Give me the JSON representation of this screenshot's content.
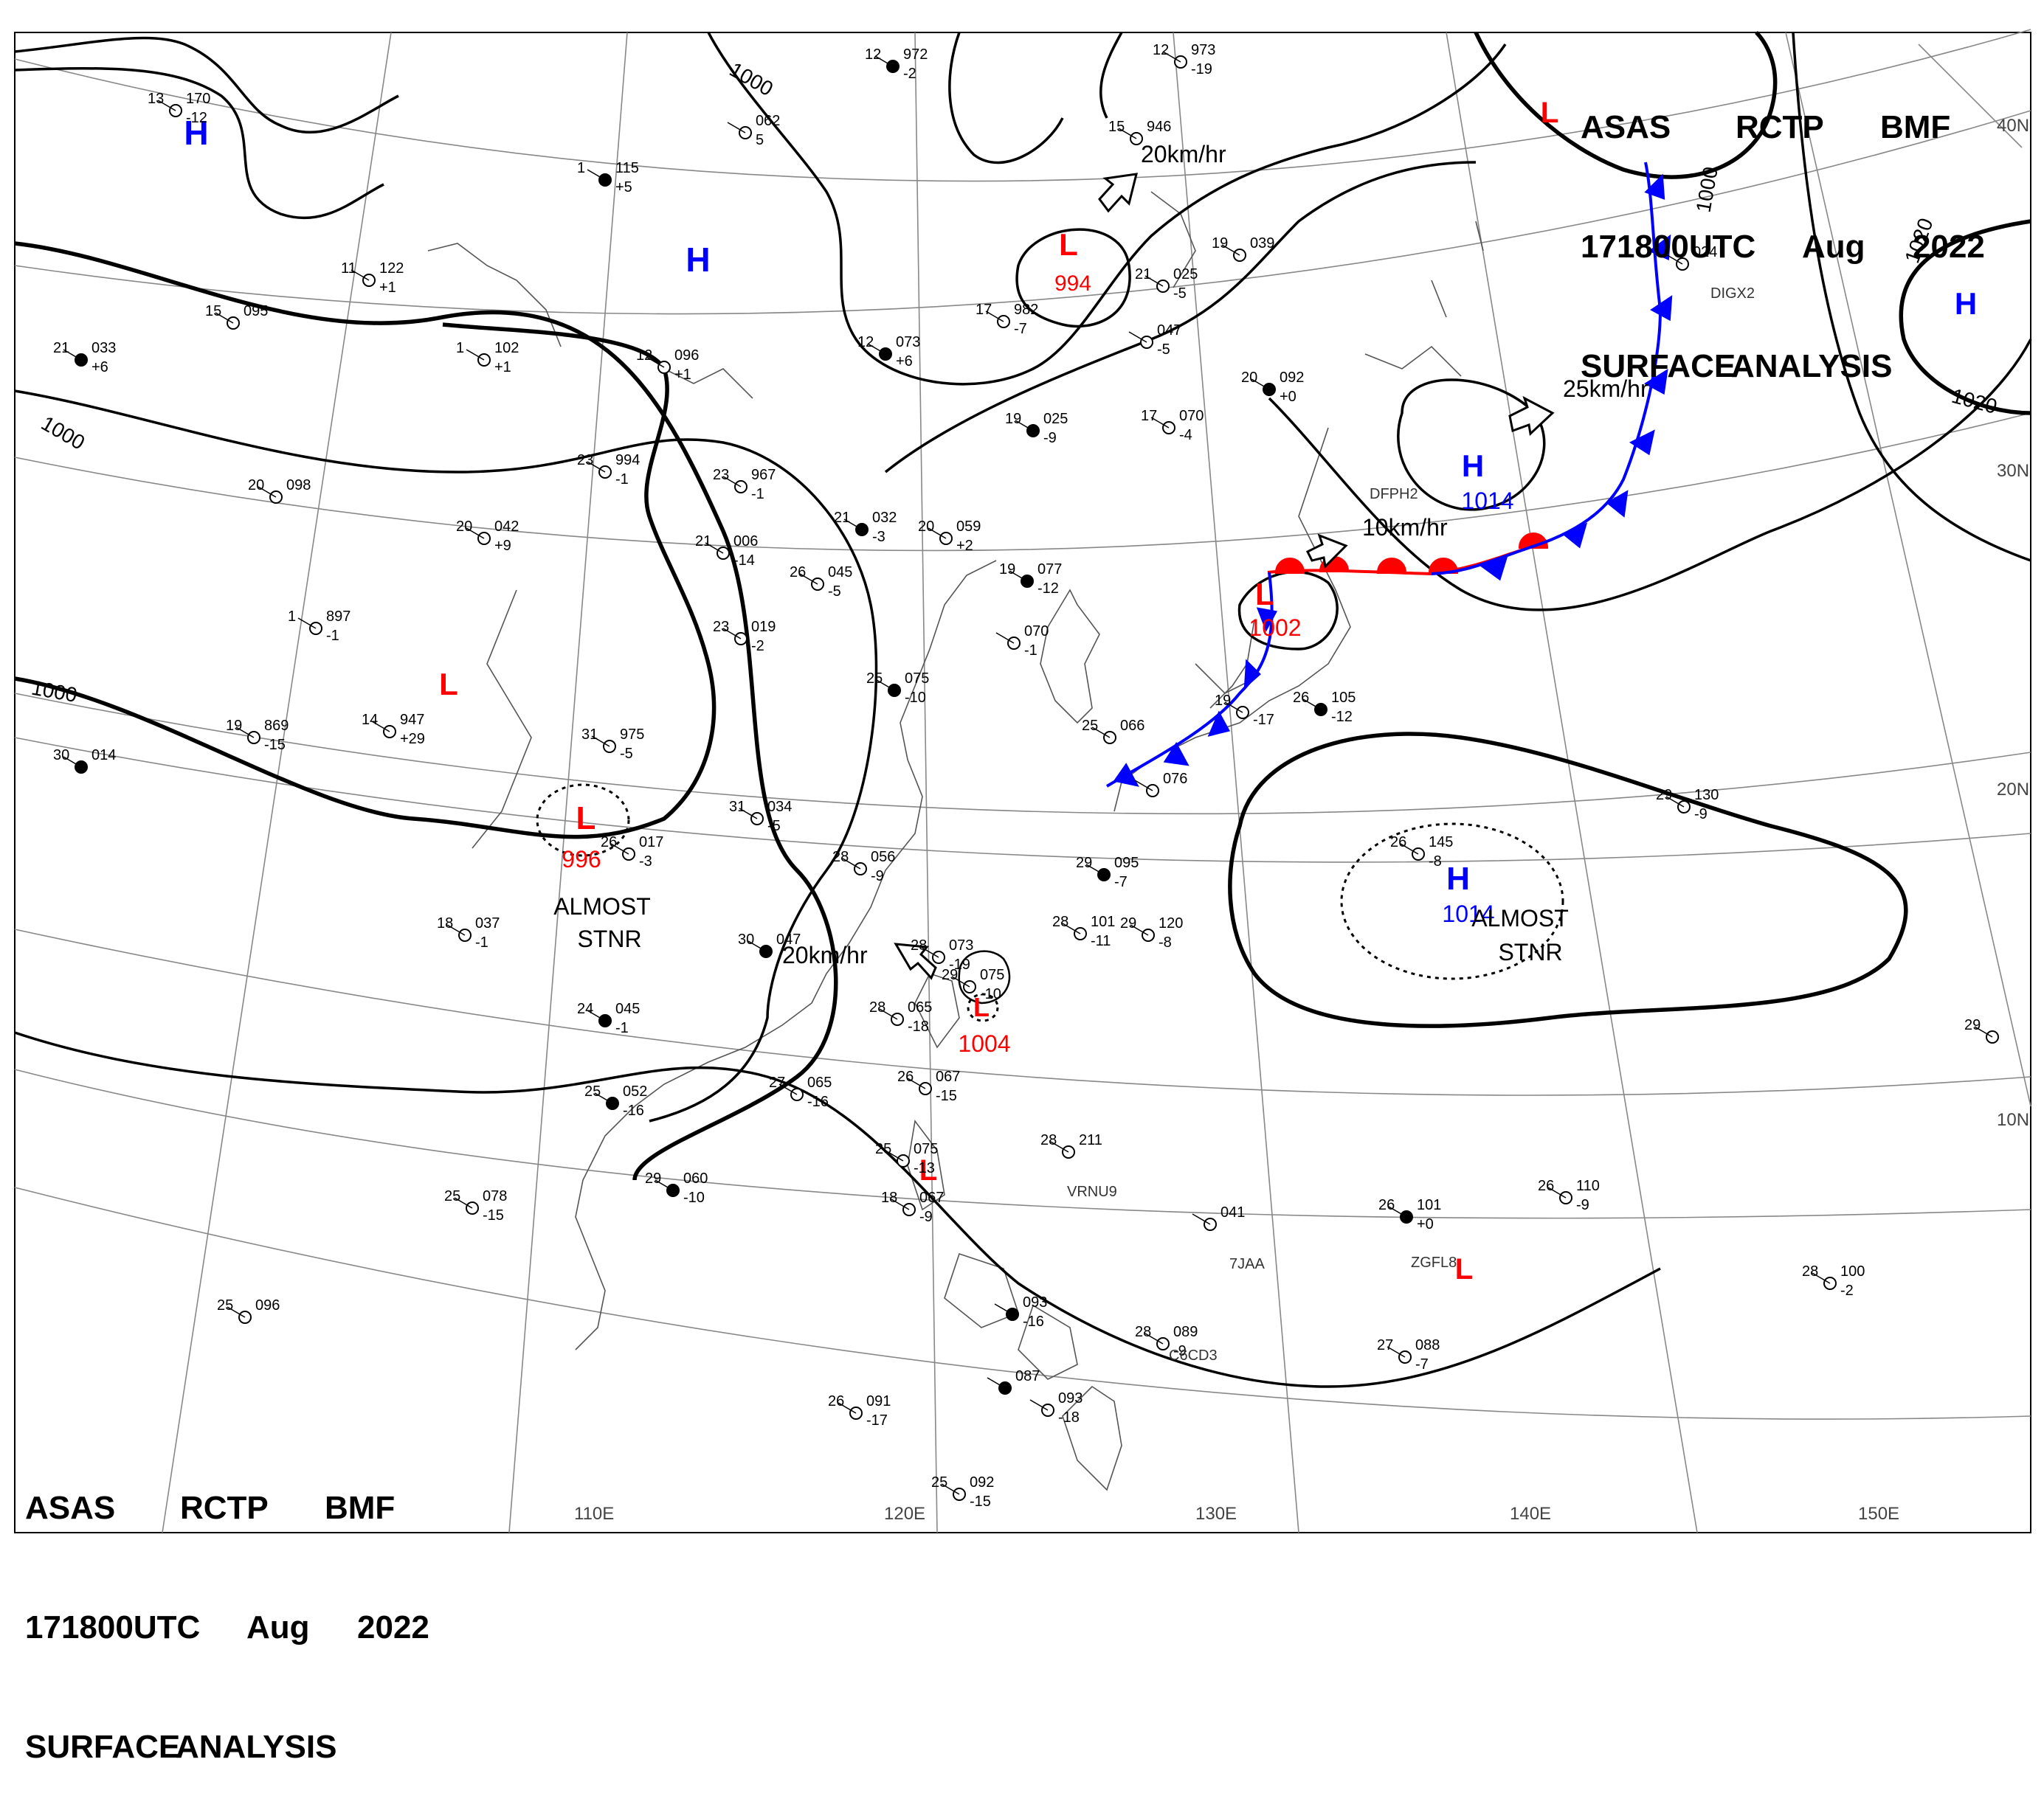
{
  "header": {
    "line1": [
      "ASAS",
      "RCTP",
      "BMF"
    ],
    "line2": [
      "171800UTC",
      "Aug",
      "2022"
    ],
    "line3": [
      "SURFACE",
      "ANALYSIS"
    ]
  },
  "colors": {
    "low": "#ff0000",
    "high": "#0000ff",
    "isobar": "#000000",
    "coast": "#555555",
    "grid": "#777777"
  },
  "latitude_labels": [
    "40N",
    "30N",
    "20N",
    "10N"
  ],
  "longitude_labels": [
    "110E",
    "120E",
    "130E",
    "140E",
    "150E"
  ],
  "isobar_labels": {
    "i1000a": "1000",
    "i1000b": "1000",
    "i1000c": "1000",
    "i1000d": "1000",
    "i1020a": "1020",
    "i1020b": "1020"
  },
  "pressure_centers": [
    {
      "type": "H",
      "value": ""
    },
    {
      "type": "H",
      "value": ""
    },
    {
      "type": "L",
      "value": "994"
    },
    {
      "type": "L",
      "value": ""
    },
    {
      "type": "H",
      "value": ""
    },
    {
      "type": "L",
      "value": ""
    },
    {
      "type": "L",
      "value": "996"
    },
    {
      "type": "H",
      "value": "1014"
    },
    {
      "type": "L",
      "value": "1002"
    },
    {
      "type": "H",
      "value": "1014"
    },
    {
      "type": "L",
      "value": "1004"
    },
    {
      "type": "L",
      "value": ""
    },
    {
      "type": "L",
      "value": ""
    }
  ],
  "movements": [
    "20km/hr",
    "25km/hr",
    "10km/hr",
    "20km/hr"
  ],
  "annotations": {
    "stnr_a1": "ALMOST",
    "stnr_a2": "STNR",
    "stnr_b1": "ALMOST",
    "stnr_b2": "STNR"
  },
  "stations": [
    {
      "t": "12",
      "p": "972",
      "d": "-2"
    },
    {
      "t": "12",
      "p": "973",
      "d": "-19"
    },
    {
      "t": "13",
      "p": "170",
      "d": "-12"
    },
    {
      "t": "",
      "p": "062",
      "d": "5"
    },
    {
      "t": "1",
      "p": "115",
      "d": "+5"
    },
    {
      "t": "15",
      "p": "946",
      "d": ""
    },
    {
      "t": "11",
      "p": "122",
      "d": "+1"
    },
    {
      "t": "15",
      "p": "095",
      "d": ""
    },
    {
      "t": "21",
      "p": "033",
      "d": "+6"
    },
    {
      "t": "1",
      "p": "102",
      "d": "+1"
    },
    {
      "t": "12",
      "p": "096",
      "d": "+1"
    },
    {
      "t": "17",
      "p": "982",
      "d": "-7"
    },
    {
      "t": "12",
      "p": "073",
      "d": "+6"
    },
    {
      "t": "21",
      "p": "025",
      "d": "-5"
    },
    {
      "t": "19",
      "p": "039",
      "d": ""
    },
    {
      "t": "",
      "p": "047",
      "d": "-5"
    },
    {
      "t": "20",
      "p": "092",
      "d": "+0"
    },
    {
      "t": "",
      "p": "024",
      "d": ""
    },
    {
      "t": "23",
      "p": "994",
      "d": "-1"
    },
    {
      "t": "23",
      "p": "967",
      "d": "-1"
    },
    {
      "t": "19",
      "p": "025",
      "d": "-9"
    },
    {
      "t": "17",
      "p": "070",
      "d": "-4"
    },
    {
      "t": "20",
      "p": "098",
      "d": ""
    },
    {
      "t": "20",
      "p": "042",
      "d": "+9"
    },
    {
      "t": "21",
      "p": "032",
      "d": "-3"
    },
    {
      "t": "20",
      "p": "059",
      "d": "+2"
    },
    {
      "t": "21",
      "p": "006",
      "d": "-14"
    },
    {
      "t": "26",
      "p": "045",
      "d": "-5"
    },
    {
      "t": "19",
      "p": "077",
      "d": "-12"
    },
    {
      "t": "",
      "p": "070",
      "d": "-1"
    },
    {
      "t": "1",
      "p": "897",
      "d": "-1"
    },
    {
      "t": "23",
      "p": "019",
      "d": "-2"
    },
    {
      "t": "25",
      "p": "075",
      "d": "-10"
    },
    {
      "t": "19",
      "p": "869",
      "d": "-15"
    },
    {
      "t": "14",
      "p": "947",
      "d": "+29"
    },
    {
      "t": "31",
      "p": "975",
      "d": "-5"
    },
    {
      "t": "30",
      "p": "014",
      "d": ""
    },
    {
      "t": "25",
      "p": "066",
      "d": ""
    },
    {
      "t": "",
      "p": "076",
      "d": ""
    },
    {
      "t": "19",
      "p": "",
      "d": "-17"
    },
    {
      "t": "26",
      "p": "105",
      "d": "-12"
    },
    {
      "t": "31",
      "p": "034",
      "d": "-5"
    },
    {
      "t": "26",
      "p": "017",
      "d": "-3"
    },
    {
      "t": "28",
      "p": "056",
      "d": "-9"
    },
    {
      "t": "29",
      "p": "095",
      "d": "-7"
    },
    {
      "t": "26",
      "p": "145",
      "d": "-8"
    },
    {
      "t": "29",
      "p": "130",
      "d": "-9"
    },
    {
      "t": "18",
      "p": "037",
      "d": "-1"
    },
    {
      "t": "30",
      "p": "047",
      "d": ""
    },
    {
      "t": "28",
      "p": "073",
      "d": "-19"
    },
    {
      "t": "28",
      "p": "101",
      "d": "-11"
    },
    {
      "t": "29",
      "p": "120",
      "d": "-8"
    },
    {
      "t": "24",
      "p": "045",
      "d": "-1"
    },
    {
      "t": "28",
      "p": "065",
      "d": "-18"
    },
    {
      "t": "29",
      "p": "075",
      "d": "-10"
    },
    {
      "t": "26",
      "p": "067",
      "d": "-15"
    },
    {
      "t": "25",
      "p": "052",
      "d": "-16"
    },
    {
      "t": "27",
      "p": "065",
      "d": "-16"
    },
    {
      "t": "28",
      "p": "211",
      "d": ""
    },
    {
      "t": "25",
      "p": "075",
      "d": "-13"
    },
    {
      "t": "29",
      "p": "060",
      "d": "-10"
    },
    {
      "t": "25",
      "p": "078",
      "d": "-15"
    },
    {
      "t": "18",
      "p": "067",
      "d": "-9"
    },
    {
      "t": "",
      "p": "041",
      "d": ""
    },
    {
      "t": "26",
      "p": "101",
      "d": "+0"
    },
    {
      "t": "26",
      "p": "110",
      "d": "-9"
    },
    {
      "t": "28",
      "p": "100",
      "d": "-2"
    },
    {
      "t": "25",
      "p": "096",
      "d": ""
    },
    {
      "t": "",
      "p": "093",
      "d": "-16"
    },
    {
      "t": "28",
      "p": "089",
      "d": "-9"
    },
    {
      "t": "27",
      "p": "088",
      "d": "-7"
    },
    {
      "t": "26",
      "p": "091",
      "d": "-17"
    },
    {
      "t": "",
      "p": "087",
      "d": ""
    },
    {
      "t": "",
      "p": "093",
      "d": "-18"
    },
    {
      "t": "25",
      "p": "092",
      "d": "-15"
    },
    {
      "t": "29",
      "p": "",
      "d": ""
    }
  ],
  "ship_ids": [
    "DIGX2",
    "DFPH2",
    "VRNU9",
    "7JAA",
    "ZGFL8",
    "C6CD3"
  ]
}
